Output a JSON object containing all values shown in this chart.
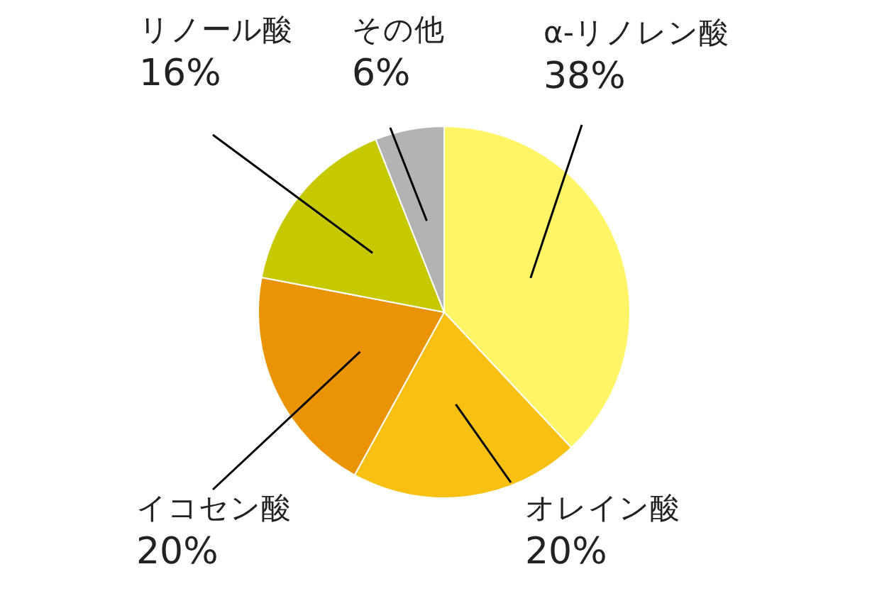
{
  "chart_data": {
    "type": "pie",
    "categories": [
      "α-リノレン酸",
      "オレイン酸",
      "イコセン酸",
      "リノール酸",
      "その他"
    ],
    "values": [
      38,
      20,
      20,
      16,
      6
    ],
    "value_labels": [
      "38%",
      "20%",
      "20%",
      "16%",
      "6%"
    ],
    "colors": [
      "#fff566",
      "#f8c013",
      "#ea9405",
      "#c7c900",
      "#b3b3b3"
    ]
  }
}
